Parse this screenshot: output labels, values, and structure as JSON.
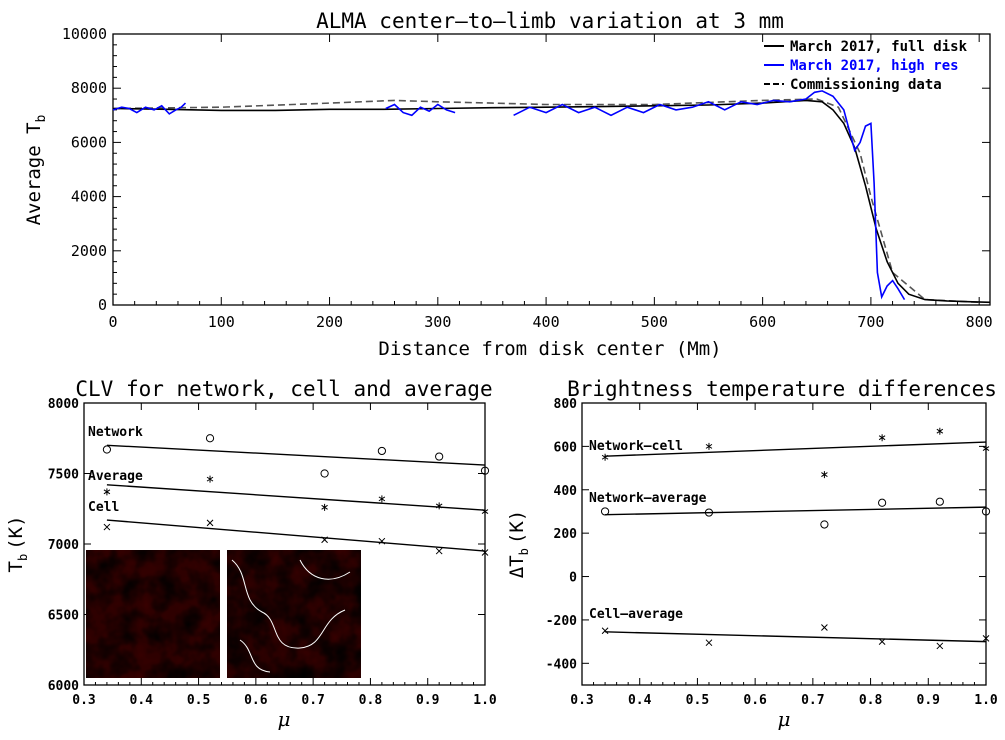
{
  "colors": {
    "full_disk": "#000000",
    "high_res": "#0000ff",
    "commissioning": "#555555",
    "background": "#ffffff",
    "map_dark": "#3a0000",
    "map_light": "#fff2b0"
  },
  "chart_data": [
    {
      "type": "line",
      "title": "ALMA center–to–limb variation at 3 mm",
      "xlabel": "Distance from disk center (Mm)",
      "ylabel_main": "Average T",
      "ylabel_sub": "b",
      "xlim": [
        0,
        810
      ],
      "ylim": [
        0,
        10000
      ],
      "xticks": [
        0,
        100,
        200,
        300,
        400,
        500,
        600,
        700,
        800
      ],
      "yticks": [
        0,
        2000,
        4000,
        6000,
        8000,
        10000
      ],
      "legend_position": "top-right",
      "series": [
        {
          "name": "March 2017, full disk",
          "style": "solid",
          "x": [
            0,
            50,
            100,
            150,
            200,
            250,
            300,
            350,
            400,
            450,
            500,
            550,
            600,
            640,
            655,
            665,
            675,
            685,
            695,
            705,
            715,
            725,
            735,
            750,
            770,
            790,
            810
          ],
          "y": [
            7250,
            7220,
            7180,
            7180,
            7220,
            7220,
            7250,
            7280,
            7300,
            7320,
            7350,
            7380,
            7450,
            7550,
            7500,
            7200,
            6700,
            5800,
            4400,
            2800,
            1600,
            800,
            400,
            200,
            150,
            120,
            100
          ]
        },
        {
          "name": "March 2017, high res",
          "style": "solid",
          "segments": [
            {
              "x": [
                0,
                8,
                15,
                22,
                30,
                38,
                45,
                52,
                58,
                63,
                67
              ],
              "y": [
                7200,
                7300,
                7250,
                7100,
                7300,
                7200,
                7350,
                7050,
                7200,
                7300,
                7450
              ]
            },
            {
              "x": [
                252,
                260,
                268,
                276,
                284,
                292,
                300,
                308,
                316
              ],
              "y": [
                7250,
                7400,
                7100,
                7000,
                7300,
                7150,
                7400,
                7200,
                7100
              ]
            },
            {
              "x": [
                370,
                385,
                400,
                415,
                430,
                445,
                460,
                475,
                490,
                505,
                520,
                535,
                550,
                565,
                580,
                595,
                610,
                625,
                640,
                648,
                655,
                665,
                675,
                685,
                690,
                695,
                700,
                703,
                706,
                710,
                715,
                720,
                725,
                731
              ],
              "y": [
                7000,
                7300,
                7100,
                7400,
                7100,
                7300,
                7000,
                7300,
                7100,
                7400,
                7200,
                7300,
                7500,
                7200,
                7500,
                7400,
                7550,
                7500,
                7600,
                7850,
                7900,
                7700,
                7200,
                5700,
                6000,
                6600,
                6700,
                4500,
                1200,
                300,
                700,
                900,
                600,
                200
              ]
            }
          ]
        },
        {
          "name": "Commissioning data",
          "style": "dashed",
          "x": [
            0,
            100,
            200,
            260,
            300,
            350,
            400,
            500,
            600,
            650,
            670,
            690,
            700,
            720,
            750,
            800
          ],
          "y": [
            7250,
            7300,
            7450,
            7550,
            7500,
            7450,
            7400,
            7400,
            7550,
            7600,
            7300,
            5600,
            4000,
            1200,
            200,
            100
          ]
        }
      ]
    },
    {
      "type": "scatter",
      "title": "CLV for network, cell and average",
      "xlabel": "μ",
      "ylabel_main": "T",
      "ylabel_sub": "b",
      "ylabel_unit": "(K)",
      "xlim": [
        0.3,
        1.0
      ],
      "ylim": [
        6000,
        8000
      ],
      "xticks": [
        "0.3",
        "0.4",
        "0.5",
        "0.6",
        "0.7",
        "0.8",
        "0.9",
        "1.0"
      ],
      "yticks": [
        "6000",
        "6500",
        "7000",
        "7500",
        "8000"
      ],
      "series": [
        {
          "name": "Network",
          "marker": "circle",
          "x": [
            0.34,
            0.52,
            0.72,
            0.82,
            0.92,
            1.0
          ],
          "y": [
            7670,
            7750,
            7500,
            7660,
            7620,
            7520
          ],
          "fit": [
            [
              0.34,
              7700
            ],
            [
              1.0,
              7560
            ]
          ]
        },
        {
          "name": "Average",
          "marker": "asterisk",
          "x": [
            0.34,
            0.52,
            0.72,
            0.82,
            0.92,
            1.0
          ],
          "y": [
            7370,
            7460,
            7260,
            7320,
            7270,
            7230
          ],
          "fit": [
            [
              0.34,
              7420
            ],
            [
              1.0,
              7240
            ]
          ]
        },
        {
          "name": "Cell",
          "marker": "cross",
          "x": [
            0.34,
            0.52,
            0.72,
            0.82,
            0.92,
            1.0
          ],
          "y": [
            7120,
            7150,
            7030,
            7020,
            6950,
            6940
          ],
          "fit": [
            [
              0.34,
              7170
            ],
            [
              1.0,
              6950
            ]
          ]
        }
      ]
    },
    {
      "type": "scatter",
      "title": "Brightness temperature differences",
      "xlabel": "μ",
      "ylabel_main": "ΔT",
      "ylabel_sub": "b",
      "ylabel_unit": "(K)",
      "xlim": [
        0.3,
        1.0
      ],
      "ylim": [
        -500,
        800
      ],
      "xticks": [
        "0.3",
        "0.4",
        "0.5",
        "0.6",
        "0.7",
        "0.8",
        "0.9",
        "1.0"
      ],
      "yticks": [
        "-400",
        "-200",
        "0",
        "200",
        "400",
        "600",
        "800"
      ],
      "series": [
        {
          "name": "Network–cell",
          "marker": "asterisk",
          "x": [
            0.34,
            0.52,
            0.72,
            0.82,
            0.92,
            1.0
          ],
          "y": [
            550,
            600,
            470,
            640,
            670,
            590
          ],
          "fit": [
            [
              0.34,
              555
            ],
            [
              1.0,
              620
            ]
          ]
        },
        {
          "name": "Network–average",
          "marker": "circle",
          "x": [
            0.34,
            0.52,
            0.72,
            0.82,
            0.92,
            1.0
          ],
          "y": [
            300,
            295,
            240,
            340,
            345,
            300
          ],
          "fit": [
            [
              0.34,
              285
            ],
            [
              1.0,
              320
            ]
          ]
        },
        {
          "name": "Cell–average",
          "marker": "cross",
          "x": [
            0.34,
            0.52,
            0.72,
            0.82,
            0.92,
            1.0
          ],
          "y": [
            -250,
            -305,
            -235,
            -300,
            -320,
            -285
          ],
          "fit": [
            [
              0.34,
              -255
            ],
            [
              1.0,
              -300
            ]
          ]
        }
      ]
    }
  ]
}
